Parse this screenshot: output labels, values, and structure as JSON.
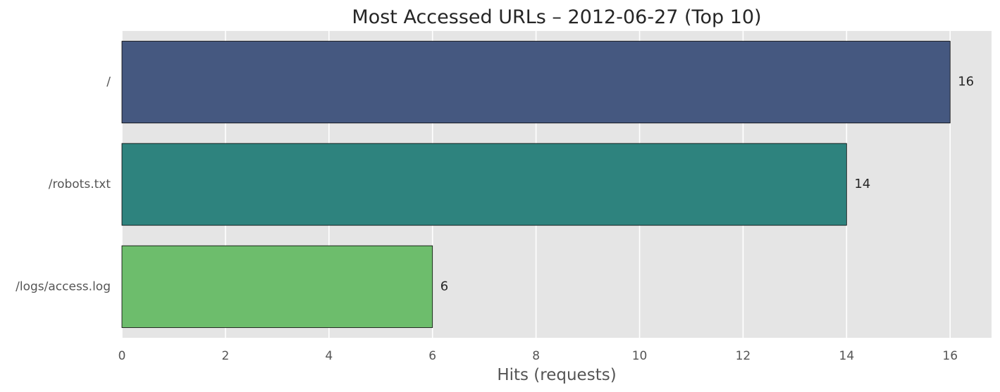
{
  "chart_data": {
    "type": "bar",
    "orientation": "horizontal",
    "title": "Most Accessed URLs – 2012-06-27 (Top 10)",
    "xlabel": "Hits (requests)",
    "ylabel": "",
    "categories": [
      "/",
      "/robots.txt",
      "/logs/access.log"
    ],
    "values": [
      16,
      14,
      6
    ],
    "value_labels": [
      "16",
      "14",
      "6"
    ],
    "colors": [
      "#455880",
      "#2e837e",
      "#6dbd6c"
    ],
    "xlim": [
      0,
      16.8
    ],
    "xticks": [
      0,
      2,
      4,
      6,
      8,
      10,
      12,
      14,
      16
    ],
    "xtick_labels": [
      "0",
      "2",
      "4",
      "6",
      "8",
      "10",
      "12",
      "14",
      "16"
    ],
    "grid": true,
    "background_color": "#e5e5e5",
    "grid_color": "#ffffff",
    "bar_edge_color": "#000000"
  }
}
